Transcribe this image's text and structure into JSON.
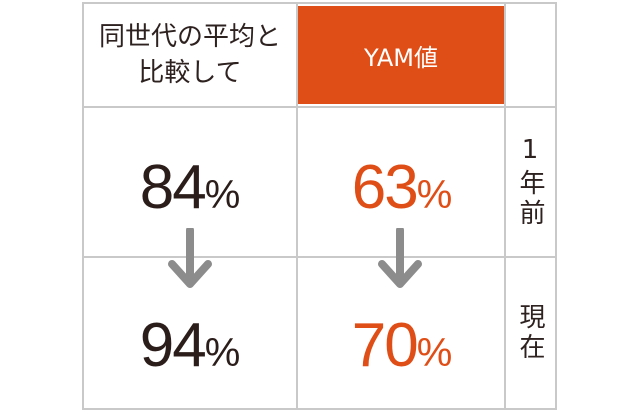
{
  "header": {
    "comparison_label": "同世代の平均と\n比較して",
    "yam_label": "YAM値"
  },
  "rows": [
    {
      "period": "1年前",
      "peer_value": "84",
      "yam_value": "63",
      "unit": "%"
    },
    {
      "period": "現在",
      "peer_value": "94",
      "yam_value": "70",
      "unit": "%"
    }
  ],
  "colors": {
    "accent": "#e04e17",
    "text_dark": "#2b1d1a",
    "grid": "#c9c9c9",
    "arrow": "#8c8c8c"
  },
  "icons": {
    "transition_arrow": "arrow-down-icon"
  }
}
